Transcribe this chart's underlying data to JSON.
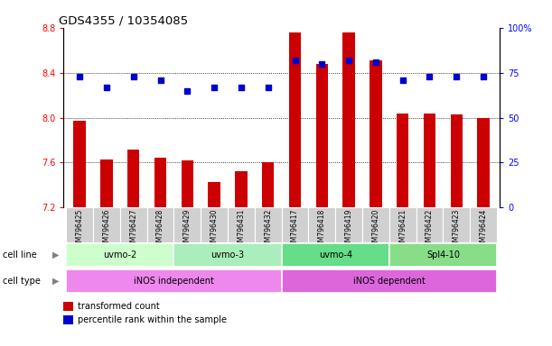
{
  "title": "GDS4355 / 10354085",
  "samples": [
    "GSM796425",
    "GSM796426",
    "GSM796427",
    "GSM796428",
    "GSM796429",
    "GSM796430",
    "GSM796431",
    "GSM796432",
    "GSM796417",
    "GSM796418",
    "GSM796419",
    "GSM796420",
    "GSM796421",
    "GSM796422",
    "GSM796423",
    "GSM796424"
  ],
  "bar_values": [
    7.97,
    7.63,
    7.72,
    7.64,
    7.62,
    7.43,
    7.52,
    7.6,
    8.76,
    8.48,
    8.76,
    8.51,
    8.04,
    8.04,
    8.03,
    8.0
  ],
  "dot_values": [
    73,
    67,
    73,
    71,
    65,
    67,
    67,
    67,
    82,
    80,
    82,
    81,
    71,
    73,
    73,
    73
  ],
  "bar_bottom": 7.2,
  "ylim_left": [
    7.2,
    8.8
  ],
  "ylim_right": [
    0,
    100
  ],
  "yticks_left": [
    7.2,
    7.6,
    8.0,
    8.4,
    8.8
  ],
  "yticks_right": [
    0,
    25,
    50,
    75,
    100
  ],
  "bar_color": "#cc0000",
  "dot_color": "#0000cc",
  "cell_line_groups": [
    {
      "label": "uvmo-2",
      "start": 0,
      "end": 3,
      "color": "#ccffcc"
    },
    {
      "label": "uvmo-3",
      "start": 4,
      "end": 7,
      "color": "#aaeebb"
    },
    {
      "label": "uvmo-4",
      "start": 8,
      "end": 11,
      "color": "#66dd88"
    },
    {
      "label": "Spl4-10",
      "start": 12,
      "end": 15,
      "color": "#88dd88"
    }
  ],
  "cell_type_groups": [
    {
      "label": "iNOS independent",
      "start": 0,
      "end": 7,
      "color": "#ee88ee"
    },
    {
      "label": "iNOS dependent",
      "start": 8,
      "end": 15,
      "color": "#dd66dd"
    }
  ],
  "legend_items": [
    {
      "label": "transformed count",
      "color": "#cc0000"
    },
    {
      "label": "percentile rank within the sample",
      "color": "#0000cc"
    }
  ],
  "grid_lines": [
    7.6,
    8.0,
    8.4
  ],
  "label_fontsize": 7,
  "sample_fontsize": 5.5
}
